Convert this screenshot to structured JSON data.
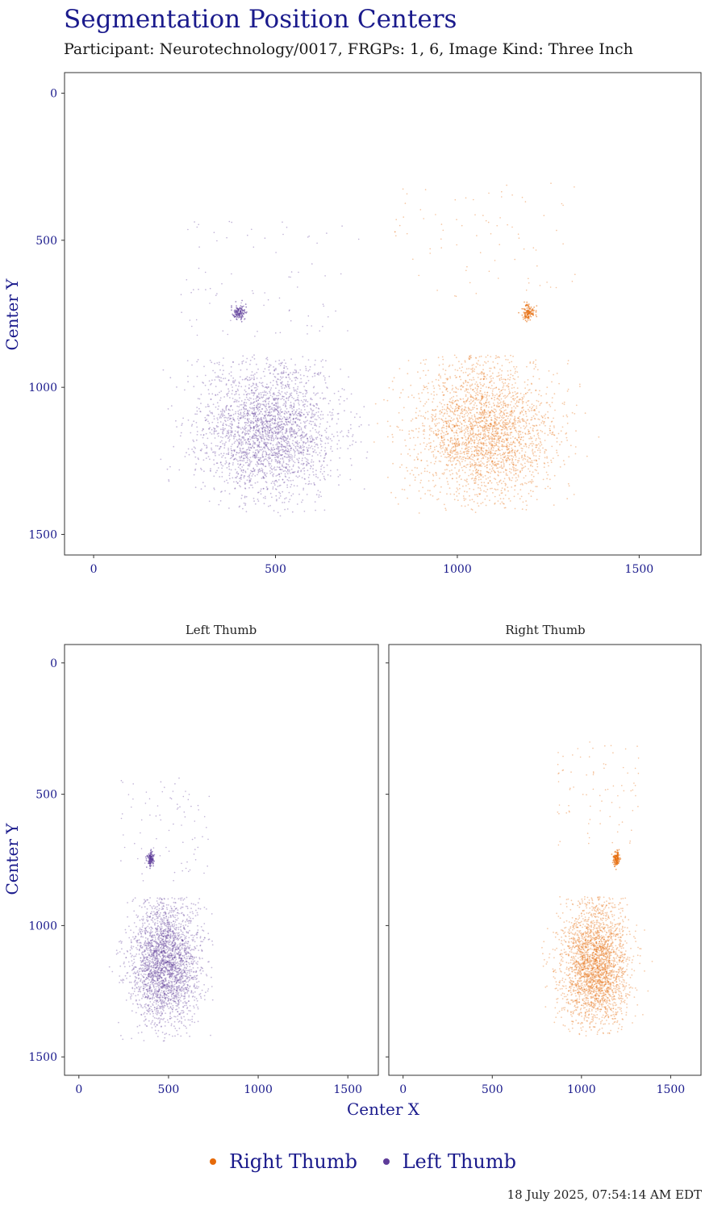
{
  "title": "Segmentation Position Centers",
  "subtitle": "Participant: Neurotechnology/0017, FRGPs: 1, 6, Image Kind: Three Inch",
  "timestamp": "18 July 2025, 07:54:14 AM EDT",
  "legend": [
    {
      "label": "Right Thumb",
      "color": "#e66a0a"
    },
    {
      "label": "Left Thumb",
      "color": "#5e3c99"
    }
  ],
  "chart_data": [
    {
      "type": "scatter",
      "panel": "combined",
      "xlabel": "",
      "ylabel": "Center Y",
      "xlim": [
        -80,
        1670
      ],
      "ylim": [
        -70,
        1570
      ],
      "y_reversed": true,
      "xticks": [
        0,
        500,
        1000,
        1500
      ],
      "yticks": [
        0,
        500,
        1000,
        1500
      ],
      "series": [
        {
          "name": "Left Thumb",
          "color": "#5e3c99",
          "center": [
            480,
            1150
          ],
          "spread": [
            95,
            115
          ],
          "range_x": [
            150,
            760
          ],
          "range_y": [
            430,
            1440
          ],
          "cluster": [
            400,
            745
          ]
        },
        {
          "name": "Right Thumb",
          "color": "#e66a0a",
          "center": [
            1075,
            1150
          ],
          "spread": [
            95,
            115
          ],
          "range_x": [
            770,
            1410
          ],
          "range_y": [
            300,
            1430
          ],
          "cluster": [
            1195,
            745
          ]
        }
      ]
    },
    {
      "type": "scatter",
      "panel": "Left Thumb",
      "strip": "Left Thumb",
      "xlabel": "Center X",
      "ylabel": "Center Y",
      "xlim": [
        -80,
        1670
      ],
      "ylim": [
        -70,
        1570
      ],
      "y_reversed": true,
      "xticks": [
        0,
        500,
        1000,
        1500
      ],
      "yticks": [
        0,
        500,
        1000,
        1500
      ],
      "series": [
        {
          "name": "Left Thumb",
          "color": "#5e3c99",
          "center": [
            480,
            1150
          ],
          "spread": [
            95,
            115
          ],
          "range_x": [
            150,
            760
          ],
          "range_y": [
            430,
            1440
          ],
          "cluster": [
            400,
            745
          ]
        }
      ]
    },
    {
      "type": "scatter",
      "panel": "Right Thumb",
      "strip": "Right Thumb",
      "xlabel": "Center X",
      "ylabel": "",
      "xlim": [
        -80,
        1670
      ],
      "ylim": [
        -70,
        1570
      ],
      "y_reversed": true,
      "xticks": [
        0,
        500,
        1000,
        1500
      ],
      "yticks": [
        0,
        500,
        1000,
        1500
      ],
      "series": [
        {
          "name": "Right Thumb",
          "color": "#e66a0a",
          "center": [
            1075,
            1150
          ],
          "spread": [
            95,
            115
          ],
          "range_x": [
            770,
            1410
          ],
          "range_y": [
            300,
            1430
          ],
          "cluster": [
            1195,
            745
          ]
        }
      ]
    }
  ]
}
